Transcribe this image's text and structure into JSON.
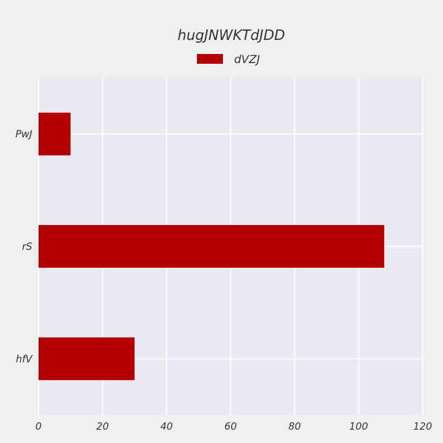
{
  "chart_data": {
    "type": "bar",
    "orientation": "horizontal",
    "title": "hugJNWKTdJDD",
    "xlabel": "",
    "ylabel": "",
    "categories": [
      "hfV",
      "rS",
      "PwJ"
    ],
    "series": [
      {
        "name": "dVZJ",
        "values": [
          30,
          108,
          10
        ],
        "color": "#b30000"
      }
    ],
    "xlim": [
      0,
      120
    ],
    "xticks": [
      0,
      20,
      40,
      60,
      80,
      100,
      120
    ],
    "grid": true,
    "legend": "top-center",
    "background": "#eaeaf2",
    "page_background": "#f0f0f0"
  }
}
